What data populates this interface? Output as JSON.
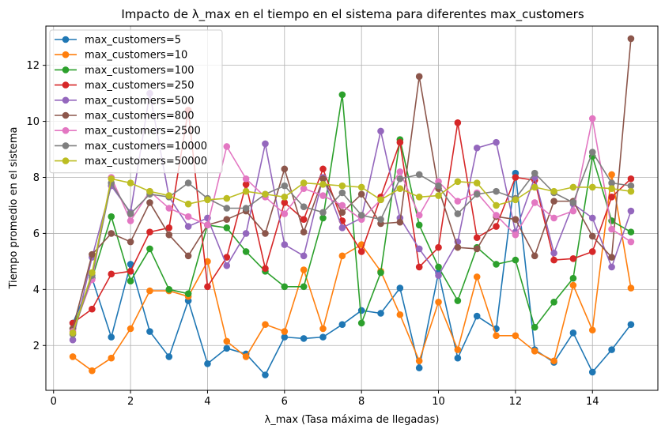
{
  "chart_data": {
    "type": "line",
    "title": "Impacto de λ_max en el tiempo en el sistema para diferentes max_customers",
    "xlabel": "λ_max (Tasa máxima de llegadas)",
    "ylabel": "Tiempo promedio en el sistema",
    "xlim": [
      -0.2,
      15.7
    ],
    "ylim": [
      0.4,
      13.4
    ],
    "xticks": [
      0,
      2,
      4,
      6,
      8,
      10,
      12,
      14
    ],
    "yticks": [
      2,
      4,
      6,
      8,
      10,
      12
    ],
    "grid": true,
    "legend_position": "top-left",
    "x": [
      0.5,
      1.0,
      1.5,
      2.0,
      2.5,
      3.0,
      3.5,
      4.0,
      4.5,
      5.0,
      5.5,
      6.0,
      6.5,
      7.0,
      7.5,
      8.0,
      8.5,
      9.0,
      9.5,
      10.0,
      10.5,
      11.0,
      11.5,
      12.0,
      12.5,
      13.0,
      13.5,
      14.0,
      14.5,
      15.0
    ],
    "series": [
      {
        "name": "max_customers=5",
        "color": "#1f77b4",
        "values": [
          2.8,
          4.4,
          2.3,
          4.9,
          2.5,
          1.6,
          3.6,
          1.35,
          1.9,
          1.7,
          0.95,
          2.3,
          2.25,
          2.3,
          2.75,
          3.25,
          3.15,
          4.05,
          1.2,
          4.6,
          1.55,
          3.05,
          2.6,
          8.15,
          1.85,
          1.4,
          2.45,
          1.05,
          1.85,
          2.75
        ]
      },
      {
        "name": "max_customers=10",
        "color": "#ff7f0e",
        "values": [
          1.6,
          1.1,
          1.55,
          2.6,
          3.95,
          3.95,
          3.75,
          5.0,
          2.15,
          1.6,
          2.75,
          2.5,
          4.7,
          2.6,
          5.2,
          5.6,
          4.65,
          3.1,
          1.45,
          3.55,
          1.85,
          4.45,
          2.35,
          2.35,
          1.8,
          1.45,
          4.15,
          2.55,
          8.1,
          4.05
        ]
      },
      {
        "name": "max_customers=100",
        "color": "#2ca02c",
        "values": [
          2.6,
          4.4,
          6.6,
          4.3,
          5.45,
          4.0,
          3.85,
          6.3,
          6.2,
          5.35,
          4.65,
          4.1,
          4.1,
          6.55,
          10.95,
          2.8,
          4.6,
          9.35,
          6.3,
          4.8,
          3.6,
          5.5,
          4.9,
          5.05,
          2.65,
          3.55,
          4.4,
          8.75,
          6.45,
          6.05
        ]
      },
      {
        "name": "max_customers=250",
        "color": "#d62728",
        "values": [
          2.8,
          3.3,
          4.55,
          4.65,
          6.05,
          6.2,
          10.4,
          4.1,
          5.15,
          7.75,
          4.75,
          7.1,
          6.5,
          8.3,
          6.45,
          5.35,
          7.3,
          9.25,
          4.8,
          5.5,
          9.95,
          5.85,
          6.25,
          8.0,
          7.9,
          5.05,
          5.1,
          5.35,
          7.3,
          7.95
        ]
      },
      {
        "name": "max_customers=500",
        "color": "#9467bd",
        "values": [
          2.2,
          5.15,
          7.7,
          6.75,
          11.0,
          7.3,
          6.25,
          6.55,
          4.85,
          6.0,
          9.2,
          5.6,
          5.2,
          8.0,
          6.2,
          6.55,
          9.65,
          6.55,
          5.45,
          4.5,
          5.7,
          9.05,
          9.25,
          6.05,
          8.0,
          5.3,
          7.05,
          6.55,
          4.8,
          6.8
        ]
      },
      {
        "name": "max_customers=800",
        "color": "#8c564b",
        "values": [
          2.6,
          5.25,
          6.0,
          5.7,
          7.1,
          5.95,
          5.2,
          6.3,
          6.5,
          6.8,
          6.0,
          8.3,
          6.05,
          7.95,
          6.75,
          7.4,
          6.35,
          6.4,
          11.6,
          7.6,
          5.5,
          5.45,
          6.6,
          6.5,
          5.2,
          7.15,
          7.15,
          5.9,
          5.15,
          12.95
        ]
      },
      {
        "name": "max_customers=2500",
        "color": "#e377c2",
        "values": [
          2.5,
          4.35,
          8.0,
          6.45,
          7.5,
          6.9,
          6.6,
          6.3,
          9.1,
          7.95,
          7.3,
          6.7,
          7.6,
          7.35,
          7.0,
          6.5,
          7.2,
          8.2,
          6.65,
          7.85,
          7.15,
          7.45,
          6.65,
          5.95,
          7.1,
          6.55,
          6.8,
          10.1,
          6.15,
          5.7
        ]
      },
      {
        "name": "max_customers=10000",
        "color": "#7f7f7f",
        "values": [
          2.4,
          4.5,
          7.8,
          6.7,
          7.4,
          7.3,
          7.8,
          7.25,
          6.9,
          6.9,
          7.4,
          7.7,
          6.95,
          6.75,
          7.45,
          6.65,
          6.5,
          7.95,
          8.1,
          7.7,
          6.7,
          7.4,
          7.5,
          7.25,
          8.15,
          7.45,
          7.1,
          8.9,
          7.8,
          7.7
        ]
      },
      {
        "name": "max_customers=50000",
        "color": "#bcbd22",
        "values": [
          2.45,
          4.6,
          7.95,
          7.8,
          7.5,
          7.35,
          7.05,
          7.2,
          7.25,
          7.5,
          7.4,
          7.3,
          7.8,
          7.75,
          7.7,
          7.65,
          7.2,
          7.6,
          7.3,
          7.35,
          7.85,
          7.8,
          7.0,
          7.2,
          7.65,
          7.5,
          7.65,
          7.65,
          7.6,
          7.5
        ]
      }
    ]
  }
}
